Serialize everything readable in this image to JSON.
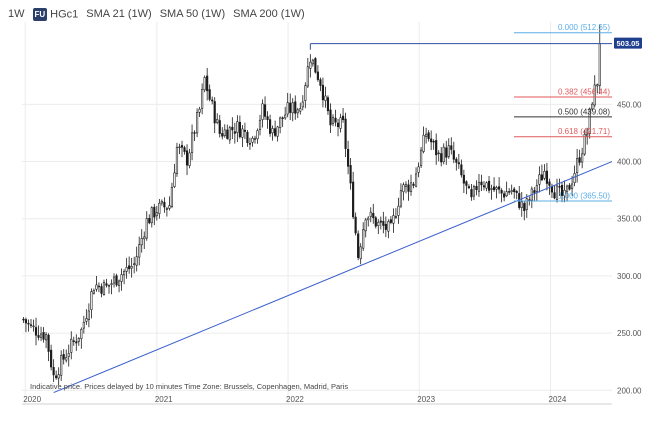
{
  "header": {
    "interval": "1W",
    "symbol_badge": "FU",
    "symbol": "HGc1",
    "indicators": [
      "SMA 21 (1W)",
      "SMA 50 (1W)",
      "SMA 200 (1W)"
    ]
  },
  "footer_note": "Indicative price. Prices delayed by 10 minutes   Time Zone: Brussels, Copenhagen, Madrid, Paris",
  "chart_data": {
    "type": "candlestick",
    "y_ticks": [
      "450.00",
      "400.00",
      "350.00",
      "300.00",
      "250.00",
      "200.00"
    ],
    "y_tick_values": [
      450,
      400,
      350,
      300,
      250,
      200
    ],
    "ylim": [
      195,
      522
    ],
    "x_ticks": [
      "2020",
      "2021",
      "2022",
      "2023",
      "2024"
    ],
    "x_tick_dates": [
      "2020-01-01",
      "2021-01-01",
      "2022-01-01",
      "2023-01-01",
      "2024-01-01"
    ],
    "xlim": [
      "2019-12-23",
      "2024-06-20"
    ],
    "last_price_label": "503.05",
    "last_price": 503.05,
    "fibonacci_levels": [
      {
        "label": "0.000 (512.65)",
        "ratio": 0.0,
        "value": 512.65,
        "color": "#5aaee8"
      },
      {
        "label": "0.382 (456.44)",
        "ratio": 0.382,
        "value": 456.44,
        "color": "#e05a5a"
      },
      {
        "label": "0.500 (439.08)",
        "ratio": 0.5,
        "value": 439.08,
        "color": "#333333"
      },
      {
        "label": "0.618 (421.71)",
        "ratio": 0.618,
        "value": 421.71,
        "color": "#e05a5a"
      },
      {
        "label": "1.000 (365.50)",
        "ratio": 1.0,
        "value": 365.5,
        "color": "#5aaee8"
      }
    ],
    "resistance_line": {
      "value": 503.05,
      "from": "2022-03-04",
      "color": "#2b4fa8"
    },
    "trend_line": {
      "points": [
        [
          "2020-03-20",
          198
        ],
        [
          "2024-06-20",
          400
        ]
      ],
      "color": "#3a5fcd"
    },
    "price_anchors": [
      [
        "2019-12-27",
        262
      ],
      [
        "2020-01-17",
        255
      ],
      [
        "2020-02-28",
        248
      ],
      [
        "2020-03-20",
        212
      ],
      [
        "2020-04-24",
        232
      ],
      [
        "2020-06-05",
        252
      ],
      [
        "2020-07-10",
        292
      ],
      [
        "2020-08-14",
        290
      ],
      [
        "2020-09-25",
        302
      ],
      [
        "2020-10-30",
        310
      ],
      [
        "2020-12-04",
        348
      ],
      [
        "2020-12-31",
        358
      ],
      [
        "2021-02-05",
        362
      ],
      [
        "2021-02-26",
        412
      ],
      [
        "2021-03-26",
        402
      ],
      [
        "2021-04-30",
        445
      ],
      [
        "2021-05-14",
        472
      ],
      [
        "2021-05-28",
        455
      ],
      [
        "2021-06-25",
        425
      ],
      [
        "2021-08-13",
        430
      ],
      [
        "2021-09-24",
        420
      ],
      [
        "2021-10-22",
        445
      ],
      [
        "2021-11-19",
        425
      ],
      [
        "2021-12-31",
        445
      ],
      [
        "2022-02-04",
        448
      ],
      [
        "2022-03-04",
        492
      ],
      [
        "2022-04-01",
        470
      ],
      [
        "2022-04-29",
        432
      ],
      [
        "2022-06-03",
        432
      ],
      [
        "2022-07-01",
        358
      ],
      [
        "2022-07-15",
        318
      ],
      [
        "2022-08-05",
        355
      ],
      [
        "2022-09-09",
        345
      ],
      [
        "2022-10-14",
        340
      ],
      [
        "2022-11-11",
        375
      ],
      [
        "2022-12-16",
        382
      ],
      [
        "2023-01-20",
        425
      ],
      [
        "2023-02-24",
        405
      ],
      [
        "2023-03-24",
        410
      ],
      [
        "2023-04-21",
        392
      ],
      [
        "2023-05-26",
        365
      ],
      [
        "2023-06-16",
        385
      ],
      [
        "2023-07-14",
        378
      ],
      [
        "2023-08-18",
        372
      ],
      [
        "2023-09-15",
        375
      ],
      [
        "2023-10-20",
        358
      ],
      [
        "2023-11-17",
        375
      ],
      [
        "2023-12-15",
        392
      ],
      [
        "2024-01-12",
        375
      ],
      [
        "2024-02-09",
        368
      ],
      [
        "2024-03-01",
        385
      ],
      [
        "2024-03-22",
        405
      ],
      [
        "2024-04-12",
        425
      ],
      [
        "2024-04-26",
        455
      ],
      [
        "2024-05-10",
        470
      ],
      [
        "2024-05-17",
        503.05
      ]
    ]
  }
}
